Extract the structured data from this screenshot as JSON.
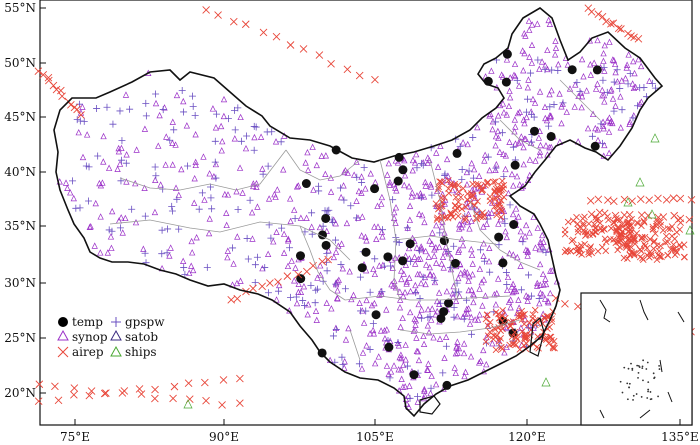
{
  "map": {
    "lon_ticks": [
      "75°E",
      "90°E",
      "105°E",
      "120°E",
      "135°E"
    ],
    "lat_ticks": [
      "55°N",
      "50°N",
      "45°N",
      "40°N",
      "35°N",
      "30°N",
      "25°N",
      "20°N"
    ],
    "extent": {
      "lon": [
        72,
        136
      ],
      "lat": [
        17.5,
        56.5
      ]
    },
    "legend": [
      {
        "key": "temp",
        "label": "temp",
        "symbol": "filled-circle",
        "color": "#000000"
      },
      {
        "key": "synop",
        "label": "synop",
        "symbol": "triangle",
        "color": "#9b30c8"
      },
      {
        "key": "airep",
        "label": "airep",
        "symbol": "x-cross",
        "color": "#e8473a"
      },
      {
        "key": "gpspw",
        "label": "gpspw",
        "symbol": "plus",
        "color": "#6a4fc2"
      },
      {
        "key": "satob",
        "label": "satob",
        "symbol": "triangle",
        "color": "#3a2a80"
      },
      {
        "key": "ships",
        "label": "ships",
        "symbol": "triangle",
        "color": "#4aa832"
      }
    ],
    "colors": {
      "border": "#111111",
      "province": "#9a9a9a",
      "frame": "#111111"
    }
  }
}
